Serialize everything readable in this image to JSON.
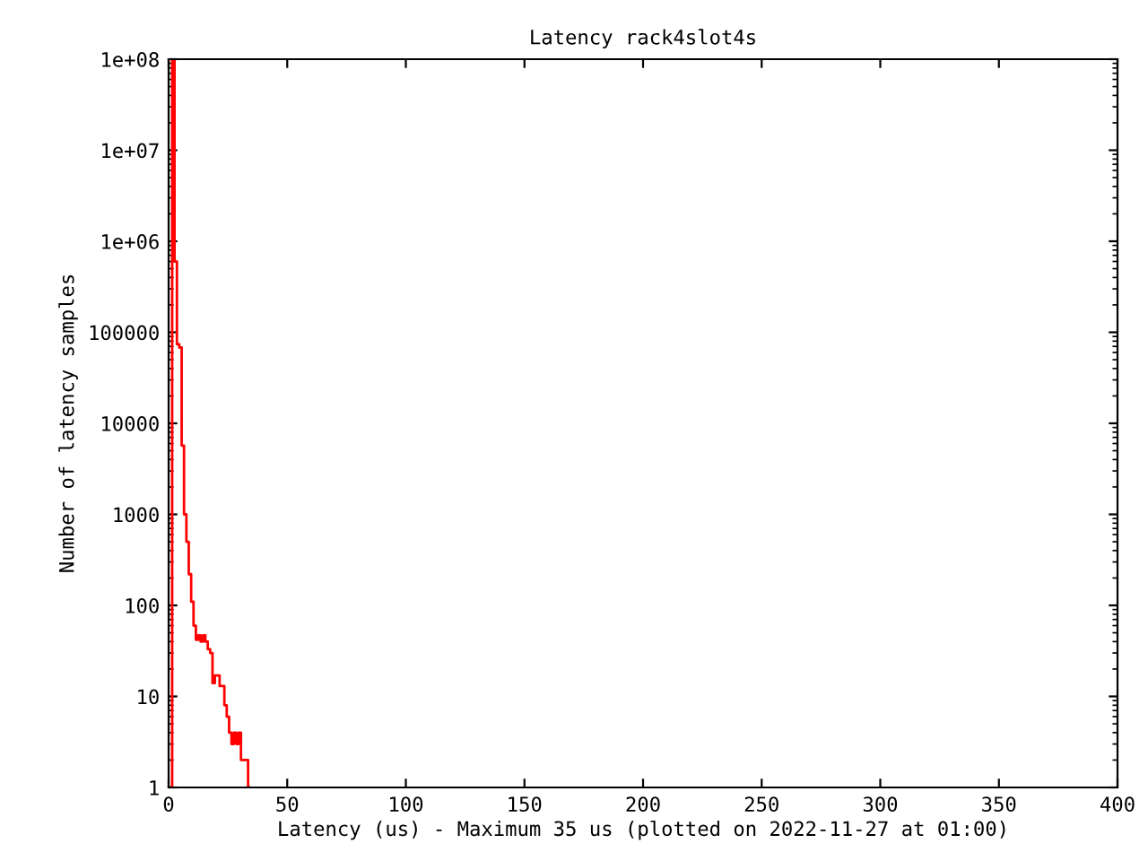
{
  "chart_data": {
    "type": "step",
    "title": "Latency rack4slot4s",
    "xlabel": "Latency (us) - Maximum 35 us (plotted on 2022-11-27 at 01:00)",
    "ylabel": "Number of latency samples",
    "x": [
      1,
      2,
      3,
      4,
      5,
      6,
      7,
      8,
      9,
      10,
      11,
      12,
      13,
      14,
      15,
      16,
      17,
      18,
      19,
      20,
      21,
      22,
      23,
      24,
      25,
      26,
      27,
      28,
      29,
      30,
      31,
      32,
      33,
      34
    ],
    "series": [
      {
        "color": "#ff0000",
        "values": [
          1,
          100000000,
          600000,
          74000,
          68000,
          5700,
          1000,
          500,
          220,
          110,
          60,
          42,
          47,
          40,
          47,
          40,
          33,
          30,
          14,
          17,
          17,
          13,
          13,
          8,
          6,
          4,
          3,
          4,
          3,
          4,
          2,
          2,
          2,
          1
        ]
      }
    ],
    "log": "y",
    "xlim": [
      0,
      400
    ],
    "xticks": [
      0,
      50,
      100,
      150,
      200,
      250,
      300,
      350,
      400
    ],
    "ylim": [
      1,
      100000000
    ],
    "yticks": [
      1,
      10,
      100,
      1000,
      10000,
      100000,
      {
        "value": 1000000,
        "label": "1e+06"
      },
      {
        "value": 10000000,
        "label": "1e+07"
      },
      {
        "value": 100000000,
        "label": "1e+08"
      }
    ],
    "grid": false,
    "legend": false
  }
}
